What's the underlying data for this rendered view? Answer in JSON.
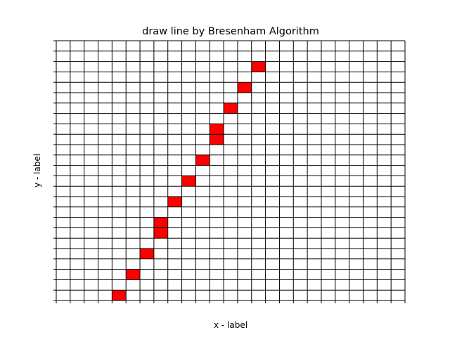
{
  "chart_data": {
    "type": "heatmap",
    "title": "draw line by Bresenham Algorithm",
    "xlabel": "x - label",
    "ylabel": "y - label",
    "xlim": [
      0,
      25
    ],
    "ylim": [
      0,
      25
    ],
    "grid": true,
    "filled_color": "#ff0000",
    "grid_color": "#000000",
    "filled_cells": [
      {
        "x": 4,
        "y": 0
      },
      {
        "x": 5,
        "y": 2
      },
      {
        "x": 6,
        "y": 4
      },
      {
        "x": 7,
        "y": 6
      },
      {
        "x": 7,
        "y": 7
      },
      {
        "x": 8,
        "y": 9
      },
      {
        "x": 9,
        "y": 11
      },
      {
        "x": 10,
        "y": 13
      },
      {
        "x": 11,
        "y": 15
      },
      {
        "x": 11,
        "y": 16
      },
      {
        "x": 12,
        "y": 18
      },
      {
        "x": 13,
        "y": 20
      },
      {
        "x": 14,
        "y": 22
      }
    ]
  }
}
